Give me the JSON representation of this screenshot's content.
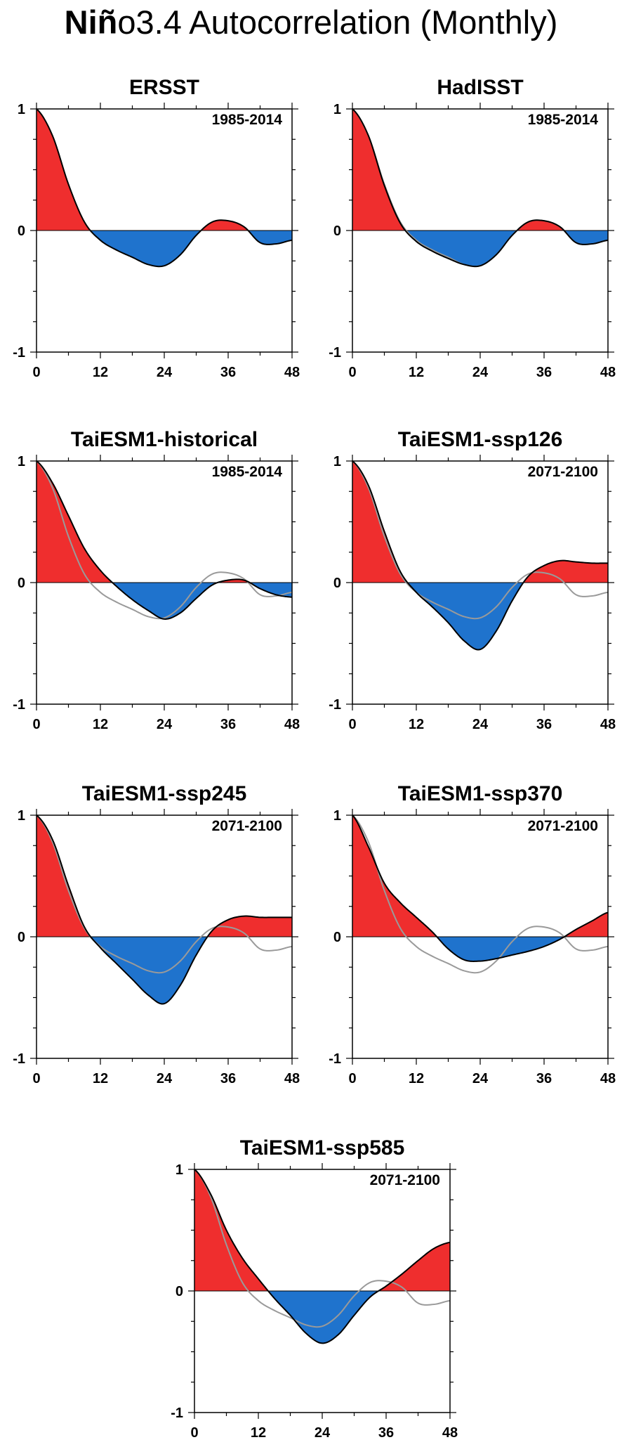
{
  "title_bold": "Niñ",
  "title_rest": "o3.4 Autocorrelation (Monthly)",
  "colors": {
    "positive": "#ef2e2e",
    "negative": "#1f73cd",
    "reference": "#9a9a9a",
    "line": "#000000"
  },
  "chart_data": [
    {
      "type": "area",
      "title": "ERSST",
      "period": "1985-2014",
      "reference_line": false,
      "xlim": [
        0,
        48
      ],
      "ylim": [
        -1,
        1
      ],
      "xticks": [
        "0",
        "12",
        "24",
        "36",
        "48"
      ],
      "yticks": [
        "1",
        "0",
        "-1"
      ],
      "x": [
        0,
        3,
        6,
        9,
        12,
        15,
        18,
        21,
        24,
        27,
        30,
        33,
        36,
        39,
        42,
        45,
        48
      ],
      "values": [
        1.0,
        0.78,
        0.38,
        0.07,
        -0.08,
        -0.16,
        -0.22,
        -0.28,
        -0.29,
        -0.2,
        -0.04,
        0.07,
        0.08,
        0.03,
        -0.1,
        -0.11,
        -0.08
      ]
    },
    {
      "type": "area",
      "title": "HadISST",
      "period": "1985-2014",
      "reference_line": true,
      "xlim": [
        0,
        48
      ],
      "ylim": [
        -1,
        1
      ],
      "xticks": [
        "0",
        "12",
        "24",
        "36",
        "48"
      ],
      "yticks": [
        "1",
        "0",
        "-1"
      ],
      "x": [
        0,
        3,
        6,
        9,
        12,
        15,
        18,
        21,
        24,
        27,
        30,
        33,
        36,
        39,
        42,
        45,
        48
      ],
      "values": [
        1.0,
        0.78,
        0.37,
        0.06,
        -0.09,
        -0.17,
        -0.23,
        -0.28,
        -0.29,
        -0.2,
        -0.04,
        0.07,
        0.08,
        0.03,
        -0.1,
        -0.11,
        -0.08
      ]
    },
    {
      "type": "area",
      "title": "TaiESM1-historical",
      "period": "1985-2014",
      "reference_line": true,
      "xlim": [
        0,
        48
      ],
      "ylim": [
        -1,
        1
      ],
      "xticks": [
        "0",
        "12",
        "24",
        "36",
        "48"
      ],
      "yticks": [
        "1",
        "0",
        "-1"
      ],
      "x": [
        0,
        3,
        6,
        9,
        12,
        15,
        18,
        21,
        24,
        27,
        30,
        33,
        36,
        39,
        42,
        45,
        48
      ],
      "values": [
        1.0,
        0.82,
        0.55,
        0.28,
        0.1,
        -0.03,
        -0.14,
        -0.23,
        -0.3,
        -0.25,
        -0.13,
        -0.02,
        0.02,
        0.02,
        -0.05,
        -0.1,
        -0.12
      ]
    },
    {
      "type": "area",
      "title": "TaiESM1-ssp126",
      "period": "2071-2100",
      "reference_line": true,
      "xlim": [
        0,
        48
      ],
      "ylim": [
        -1,
        1
      ],
      "xticks": [
        "0",
        "12",
        "24",
        "36",
        "48"
      ],
      "yticks": [
        "1",
        "0",
        "-1"
      ],
      "x": [
        0,
        3,
        6,
        9,
        12,
        15,
        18,
        21,
        24,
        27,
        30,
        33,
        36,
        39,
        42,
        45,
        48
      ],
      "values": [
        1.0,
        0.8,
        0.42,
        0.09,
        -0.08,
        -0.2,
        -0.33,
        -0.48,
        -0.55,
        -0.4,
        -0.15,
        0.05,
        0.14,
        0.18,
        0.17,
        0.16,
        0.16
      ]
    },
    {
      "type": "area",
      "title": "TaiESM1-ssp245",
      "period": "2071-2100",
      "reference_line": true,
      "xlim": [
        0,
        48
      ],
      "ylim": [
        -1,
        1
      ],
      "xticks": [
        "0",
        "12",
        "24",
        "36",
        "48"
      ],
      "yticks": [
        "1",
        "0",
        "-1"
      ],
      "x": [
        0,
        3,
        6,
        9,
        12,
        15,
        18,
        21,
        24,
        27,
        30,
        33,
        36,
        39,
        42,
        45,
        48
      ],
      "values": [
        1.0,
        0.8,
        0.42,
        0.08,
        -0.09,
        -0.22,
        -0.35,
        -0.48,
        -0.55,
        -0.4,
        -0.15,
        0.05,
        0.14,
        0.17,
        0.16,
        0.16,
        0.16
      ]
    },
    {
      "type": "area",
      "title": "TaiESM1-ssp370",
      "period": "2071-2100",
      "reference_line": true,
      "xlim": [
        0,
        48
      ],
      "ylim": [
        -1,
        1
      ],
      "xticks": [
        "0",
        "12",
        "24",
        "36",
        "48"
      ],
      "yticks": [
        "1",
        "0",
        "-1"
      ],
      "x": [
        0,
        3,
        6,
        9,
        12,
        15,
        18,
        21,
        24,
        27,
        30,
        33,
        36,
        39,
        42,
        45,
        48
      ],
      "values": [
        1.0,
        0.74,
        0.44,
        0.28,
        0.16,
        0.04,
        -0.1,
        -0.19,
        -0.2,
        -0.18,
        -0.15,
        -0.12,
        -0.08,
        -0.02,
        0.06,
        0.13,
        0.2
      ]
    },
    {
      "type": "area",
      "title": "TaiESM1-ssp585",
      "period": "2071-2100",
      "reference_line": true,
      "xlim": [
        0,
        48
      ],
      "ylim": [
        -1,
        1
      ],
      "xticks": [
        "0",
        "12",
        "24",
        "36",
        "48"
      ],
      "yticks": [
        "1",
        "0",
        "-1"
      ],
      "x": [
        0,
        3,
        6,
        9,
        12,
        15,
        18,
        21,
        24,
        27,
        30,
        33,
        36,
        39,
        42,
        45,
        48
      ],
      "values": [
        1.0,
        0.8,
        0.5,
        0.27,
        0.1,
        -0.06,
        -0.2,
        -0.35,
        -0.43,
        -0.36,
        -0.2,
        -0.05,
        0.04,
        0.14,
        0.25,
        0.35,
        0.4
      ]
    }
  ]
}
